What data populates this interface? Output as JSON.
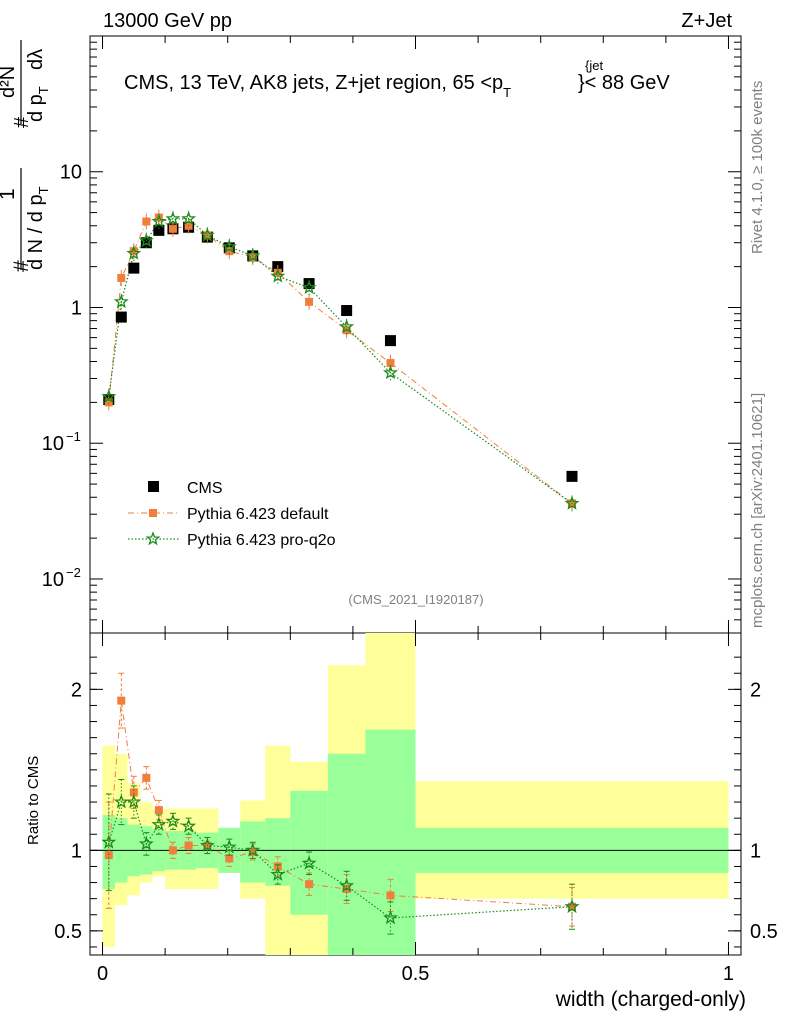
{
  "header": {
    "left": "13000 GeV pp",
    "right": "Z+Jet"
  },
  "chart_data": {
    "type": "scatter",
    "title": "CMS, 13 TeV, AK8 jets, Z+jet region, 65 <p_T^{jet}< 88 GeV",
    "title_parts": {
      "main": "CMS, 13 TeV, AK8 jets, Z+jet region, 65 <p",
      "sub": "T",
      "sup": "{jet",
      "close": "}< 88 GeV"
    },
    "ylabel_parts": {
      "a": "d N / d p",
      "a_sub": "T",
      "b": "d p",
      "b_sub": "T",
      "c": "dλ",
      "num1": "1",
      "num2": "d²N",
      "hash": "#"
    },
    "xlabel": "width (charged-only)",
    "ratio_ylabel": "Ratio to CMS",
    "analysis_tag": "(CMS_2021_I1920187)",
    "side_label_top": "Rivet 4.1.0, ≥ 100k events",
    "side_label_bottom": "mcplots.cern.ch [arXiv:2401.10621]",
    "main_y_scale": "log",
    "main_ylim": [
      0.004,
      100
    ],
    "main_y_ticks": [
      {
        "value": 10,
        "label": "10"
      },
      {
        "value": 1,
        "label": "1"
      },
      {
        "value": 0.1,
        "base": "10",
        "exp": "−1"
      },
      {
        "value": 0.01,
        "base": "10",
        "exp": "−2"
      }
    ],
    "xlim": [
      -0.02,
      1.02
    ],
    "x_ticks": [
      {
        "value": 0,
        "label": "0"
      },
      {
        "value": 0.5,
        "label": "0.5"
      },
      {
        "value": 1,
        "label": "1"
      }
    ],
    "ratio_ylim": [
      0.35,
      2.35
    ],
    "ratio_y_ticks": [
      {
        "value": 2,
        "label": "2"
      },
      {
        "value": 1,
        "label": "1"
      },
      {
        "value": 0.5,
        "label": "0.5"
      }
    ],
    "legend_position": "bottom-left",
    "legend": [
      "CMS",
      "Pythia 6.423 default",
      "Pythia 6.423 pro-q2o"
    ],
    "colors": {
      "cms": "#000000",
      "default": "#f07f3c",
      "proq2o": "#1a8c1a",
      "band_outer": "#ffff99",
      "band_inner": "#99ff99"
    },
    "bins": [
      [
        0.0,
        0.02
      ],
      [
        0.02,
        0.04
      ],
      [
        0.04,
        0.06
      ],
      [
        0.06,
        0.08
      ],
      [
        0.08,
        0.1
      ],
      [
        0.1,
        0.125
      ],
      [
        0.125,
        0.15
      ],
      [
        0.15,
        0.185
      ],
      [
        0.185,
        0.22
      ],
      [
        0.22,
        0.26
      ],
      [
        0.26,
        0.3
      ],
      [
        0.3,
        0.36
      ],
      [
        0.36,
        0.42
      ],
      [
        0.42,
        0.5
      ],
      [
        0.5,
        1.0
      ]
    ],
    "x": [
      0.01,
      0.03,
      0.05,
      0.07,
      0.09,
      0.1125,
      0.1375,
      0.1675,
      0.2025,
      0.24,
      0.28,
      0.33,
      0.39,
      0.46,
      0.75
    ],
    "series": [
      {
        "name": "CMS",
        "values": [
          0.21,
          0.85,
          1.95,
          3.0,
          3.7,
          3.8,
          3.9,
          3.3,
          2.75,
          2.4,
          2.0,
          1.5,
          0.95,
          0.57,
          0.057
        ]
      },
      {
        "name": "Pythia 6.423 default",
        "values": [
          0.2,
          1.65,
          2.6,
          4.3,
          4.6,
          3.8,
          4.0,
          3.4,
          2.6,
          2.35,
          1.8,
          1.1,
          0.68,
          0.39,
          0.036
        ]
      },
      {
        "name": "Pythia 6.423 pro-q2o",
        "values": [
          0.22,
          1.1,
          2.5,
          3.1,
          4.3,
          4.5,
          4.5,
          3.4,
          2.8,
          2.4,
          1.7,
          1.4,
          0.72,
          0.33,
          0.036
        ]
      }
    ],
    "ratio_series": [
      {
        "name": "Pythia 6.423 default",
        "values": [
          0.97,
          1.93,
          1.36,
          1.45,
          1.25,
          1.0,
          1.03,
          1.03,
          0.95,
          0.99,
          0.9,
          0.79,
          0.76,
          0.72,
          0.65
        ],
        "errors": [
          0.33,
          0.17,
          0.1,
          0.07,
          0.06,
          0.05,
          0.05,
          0.05,
          0.05,
          0.05,
          0.06,
          0.07,
          0.09,
          0.1,
          0.12
        ]
      },
      {
        "name": "Pythia 6.423 pro-q2o",
        "values": [
          1.05,
          1.3,
          1.3,
          1.04,
          1.16,
          1.18,
          1.15,
          1.03,
          1.02,
          1.0,
          0.85,
          0.92,
          0.78,
          0.58,
          0.65
        ],
        "errors": [
          0.3,
          0.14,
          0.1,
          0.07,
          0.06,
          0.05,
          0.05,
          0.05,
          0.05,
          0.05,
          0.06,
          0.07,
          0.09,
          0.1,
          0.14
        ]
      }
    ],
    "ratio_band_inner": [
      [
        0.76,
        1.22
      ],
      [
        0.8,
        1.2
      ],
      [
        0.84,
        1.16
      ],
      [
        0.85,
        1.15
      ],
      [
        0.87,
        1.13
      ],
      [
        0.88,
        1.12
      ],
      [
        0.88,
        1.12
      ],
      [
        0.89,
        1.11
      ],
      [
        0.86,
        1.14
      ],
      [
        0.8,
        1.18
      ],
      [
        0.78,
        1.2
      ],
      [
        0.6,
        1.37
      ],
      [
        0.35,
        1.6
      ],
      [
        0.35,
        1.75
      ],
      [
        0.86,
        1.14
      ]
    ],
    "ratio_band_outer": [
      [
        0.4,
        1.65
      ],
      [
        0.66,
        1.6
      ],
      [
        0.72,
        1.42
      ],
      [
        0.8,
        1.3
      ],
      [
        0.84,
        1.25
      ],
      [
        0.76,
        1.26
      ],
      [
        0.76,
        1.26
      ],
      [
        0.76,
        1.26
      ],
      [
        1.0,
        1.1
      ],
      [
        0.7,
        1.31
      ],
      [
        0.35,
        1.65
      ],
      [
        0.35,
        1.55
      ],
      [
        0.35,
        2.15
      ],
      [
        0.35,
        2.5
      ],
      [
        0.7,
        1.43
      ]
    ]
  }
}
